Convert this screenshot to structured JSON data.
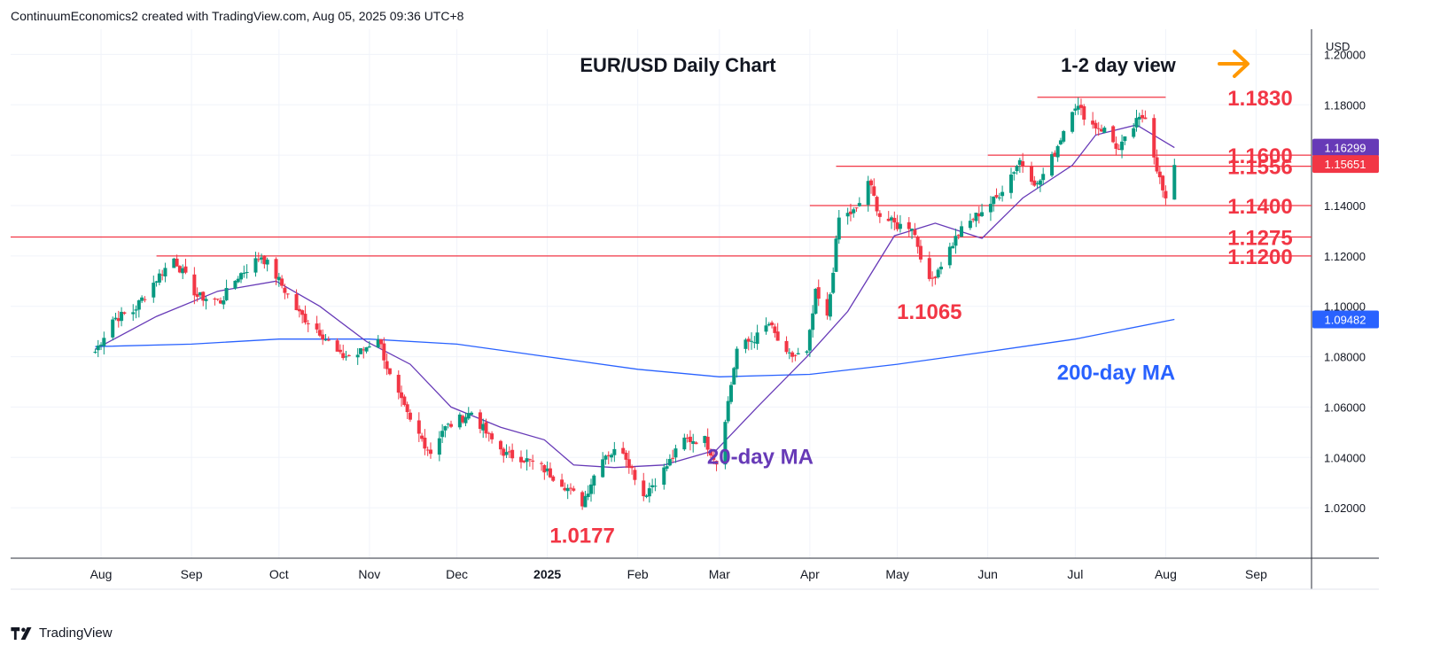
{
  "header": {
    "text": "ContinuumEconomics2 created with TradingView.com, Aug 05, 2025 09:36 UTC+8"
  },
  "footer": {
    "brand": "TradingView"
  },
  "colors": {
    "up": "#089981",
    "down": "#f23645",
    "ma20": "#673ab7",
    "ma200": "#2962ff",
    "level": "#f23645",
    "arrow": "#ff9800",
    "grid": "#f0f3fa",
    "axis_text": "#131722"
  },
  "chart_data": {
    "type": "candlestick",
    "title": "EUR/USD Daily Chart",
    "subtitle": "1-2 day view",
    "currency": "USD",
    "ylim": [
      1.0,
      1.21
    ],
    "y_ticks": [
      "1.20000",
      "1.18000",
      "1.16000",
      "1.14000",
      "1.12000",
      "1.10000",
      "1.08000",
      "1.06000",
      "1.04000",
      "1.02000"
    ],
    "x_ticks": [
      "Aug",
      "Sep",
      "Oct",
      "Nov",
      "Dec",
      "2025",
      "Feb",
      "Mar",
      "Apr",
      "May",
      "Jun",
      "Jul",
      "Aug",
      "Sep"
    ],
    "price_badges": [
      {
        "value": "1.16299",
        "color": "#673ab7"
      },
      {
        "value": "1.15651",
        "color": "#f23645"
      },
      {
        "value": "1.09482",
        "color": "#2962ff"
      }
    ],
    "levels": [
      {
        "label": "1.1830",
        "value": 1.183,
        "start": "Jun 18"
      },
      {
        "label": "1.1600",
        "value": 1.16,
        "start": "Jun 1"
      },
      {
        "label": "1.1556",
        "value": 1.1556,
        "start": "Apr 10"
      },
      {
        "label": "1.1400",
        "value": 1.14,
        "start": "Apr 1"
      },
      {
        "label": "1.1275",
        "value": 1.1275,
        "start": "Jul 30 2024"
      },
      {
        "label": "1.1200",
        "value": 1.12,
        "start": "Aug 20 2024"
      }
    ],
    "annotations": [
      {
        "text": "1.1065",
        "date": "May 12",
        "value": 1.1065
      },
      {
        "text": "1.0177",
        "date": "Jan 13",
        "value": 1.0177
      },
      {
        "text": "20-day MA",
        "date": "Mar 15",
        "value": 1.049
      },
      {
        "text": "200-day MA",
        "date": "Jul 15",
        "value": 1.0825
      }
    ],
    "anchors": [
      [
        "2024-07-30",
        1.082
      ],
      [
        "2024-08-05",
        1.095
      ],
      [
        "2024-08-12",
        1.098
      ],
      [
        "2024-08-20",
        1.111
      ],
      [
        "2024-08-26",
        1.119
      ],
      [
        "2024-09-03",
        1.104
      ],
      [
        "2024-09-11",
        1.102
      ],
      [
        "2024-09-17",
        1.112
      ],
      [
        "2024-09-25",
        1.12
      ],
      [
        "2024-09-30",
        1.112
      ],
      [
        "2024-10-08",
        1.097
      ],
      [
        "2024-10-15",
        1.09
      ],
      [
        "2024-10-22",
        1.08
      ],
      [
        "2024-10-28",
        1.081
      ],
      [
        "2024-11-04",
        1.088
      ],
      [
        "2024-11-08",
        1.072
      ],
      [
        "2024-11-15",
        1.054
      ],
      [
        "2024-11-22",
        1.042
      ],
      [
        "2024-11-26",
        1.051
      ],
      [
        "2024-12-06",
        1.058
      ],
      [
        "2024-12-12",
        1.048
      ],
      [
        "2024-12-18",
        1.041
      ],
      [
        "2024-12-23",
        1.04
      ],
      [
        "2024-12-30",
        1.036
      ],
      [
        "2025-01-06",
        1.03
      ],
      [
        "2025-01-13",
        1.022
      ],
      [
        "2025-01-20",
        1.041
      ],
      [
        "2025-01-27",
        1.043
      ],
      [
        "2025-02-03",
        1.025
      ],
      [
        "2025-02-10",
        1.035
      ],
      [
        "2025-02-17",
        1.047
      ],
      [
        "2025-02-24",
        1.047
      ],
      [
        "2025-02-28",
        1.038
      ],
      [
        "2025-03-04",
        1.062
      ],
      [
        "2025-03-07",
        1.083
      ],
      [
        "2025-03-14",
        1.088
      ],
      [
        "2025-03-18",
        1.093
      ],
      [
        "2025-03-24",
        1.08
      ],
      [
        "2025-03-31",
        1.081
      ],
      [
        "2025-04-03",
        1.105
      ],
      [
        "2025-04-07",
        1.095
      ],
      [
        "2025-04-11",
        1.135
      ],
      [
        "2025-04-17",
        1.138
      ],
      [
        "2025-04-21",
        1.15
      ],
      [
        "2025-04-25",
        1.136
      ],
      [
        "2025-05-01",
        1.132
      ],
      [
        "2025-05-06",
        1.132
      ],
      [
        "2025-05-12",
        1.109
      ],
      [
        "2025-05-16",
        1.117
      ],
      [
        "2025-05-22",
        1.129
      ],
      [
        "2025-05-29",
        1.137
      ],
      [
        "2025-06-04",
        1.143
      ],
      [
        "2025-06-12",
        1.158
      ],
      [
        "2025-06-18",
        1.148
      ],
      [
        "2025-06-24",
        1.161
      ],
      [
        "2025-06-30",
        1.179
      ],
      [
        "2025-07-01",
        1.18
      ],
      [
        "2025-07-07",
        1.172
      ],
      [
        "2025-07-11",
        1.17
      ],
      [
        "2025-07-16",
        1.162
      ],
      [
        "2025-07-22",
        1.173
      ],
      [
        "2025-07-25",
        1.176
      ],
      [
        "2025-07-29",
        1.155
      ],
      [
        "2025-08-01",
        1.141
      ],
      [
        "2025-08-04",
        1.157
      ]
    ],
    "sma20_anchors": [
      [
        "2024-07-30",
        1.083
      ],
      [
        "2024-08-20",
        1.096
      ],
      [
        "2024-09-10",
        1.106
      ],
      [
        "2024-09-30",
        1.11
      ],
      [
        "2024-10-15",
        1.1
      ],
      [
        "2024-10-31",
        1.086
      ],
      [
        "2024-11-15",
        1.077
      ],
      [
        "2024-11-29",
        1.06
      ],
      [
        "2024-12-16",
        1.052
      ],
      [
        "2024-12-31",
        1.047
      ],
      [
        "2025-01-10",
        1.037
      ],
      [
        "2025-01-24",
        1.036
      ],
      [
        "2025-02-10",
        1.037
      ],
      [
        "2025-02-28",
        1.043
      ],
      [
        "2025-03-14",
        1.06
      ],
      [
        "2025-03-31",
        1.08
      ],
      [
        "2025-04-14",
        1.098
      ],
      [
        "2025-04-30",
        1.128
      ],
      [
        "2025-05-14",
        1.133
      ],
      [
        "2025-05-30",
        1.127
      ],
      [
        "2025-06-13",
        1.143
      ],
      [
        "2025-06-30",
        1.156
      ],
      [
        "2025-07-08",
        1.168
      ],
      [
        "2025-07-22",
        1.172
      ],
      [
        "2025-08-04",
        1.163
      ]
    ],
    "sma200_anchors": [
      [
        "2024-07-30",
        1.084
      ],
      [
        "2024-09-01",
        1.085
      ],
      [
        "2024-10-01",
        1.087
      ],
      [
        "2024-11-01",
        1.087
      ],
      [
        "2024-12-01",
        1.085
      ],
      [
        "2025-01-01",
        1.08
      ],
      [
        "2025-02-01",
        1.075
      ],
      [
        "2025-03-01",
        1.072
      ],
      [
        "2025-04-01",
        1.073
      ],
      [
        "2025-05-01",
        1.077
      ],
      [
        "2025-06-01",
        1.082
      ],
      [
        "2025-07-01",
        1.087
      ],
      [
        "2025-08-04",
        1.0948
      ]
    ]
  }
}
